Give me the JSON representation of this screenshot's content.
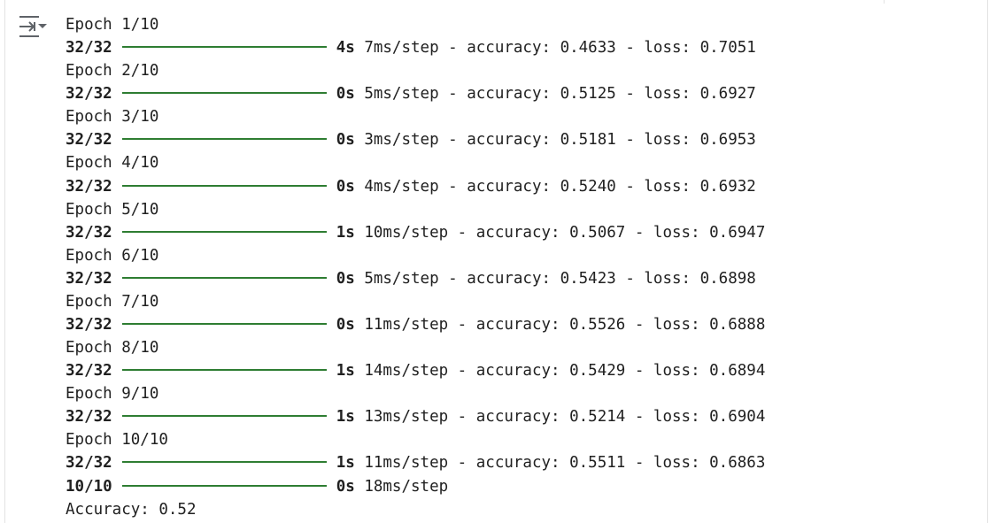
{
  "toggle_icon": "collapse-output-icon",
  "bar_color": "#2e7d32",
  "lines": [
    {
      "kind": "epoch",
      "text": "Epoch 1/10"
    },
    {
      "kind": "progress",
      "steps": "32/32",
      "progress": 1.0,
      "time": "4s",
      "rest": "7ms/step - accuracy: 0.4633 - loss: 0.7051"
    },
    {
      "kind": "epoch",
      "text": "Epoch 2/10"
    },
    {
      "kind": "progress",
      "steps": "32/32",
      "progress": 1.0,
      "time": "0s",
      "rest": "5ms/step - accuracy: 0.5125 - loss: 0.6927"
    },
    {
      "kind": "epoch",
      "text": "Epoch 3/10"
    },
    {
      "kind": "progress",
      "steps": "32/32",
      "progress": 1.0,
      "time": "0s",
      "rest": "3ms/step - accuracy: 0.5181 - loss: 0.6953"
    },
    {
      "kind": "epoch",
      "text": "Epoch 4/10"
    },
    {
      "kind": "progress",
      "steps": "32/32",
      "progress": 1.0,
      "time": "0s",
      "rest": "4ms/step - accuracy: 0.5240 - loss: 0.6932"
    },
    {
      "kind": "epoch",
      "text": "Epoch 5/10"
    },
    {
      "kind": "progress",
      "steps": "32/32",
      "progress": 1.0,
      "time": "1s",
      "rest": "10ms/step - accuracy: 0.5067 - loss: 0.6947"
    },
    {
      "kind": "epoch",
      "text": "Epoch 6/10"
    },
    {
      "kind": "progress",
      "steps": "32/32",
      "progress": 1.0,
      "time": "0s",
      "rest": "5ms/step - accuracy: 0.5423 - loss: 0.6898"
    },
    {
      "kind": "epoch",
      "text": "Epoch 7/10"
    },
    {
      "kind": "progress",
      "steps": "32/32",
      "progress": 1.0,
      "time": "0s",
      "rest": "11ms/step - accuracy: 0.5526 - loss: 0.6888"
    },
    {
      "kind": "epoch",
      "text": "Epoch 8/10"
    },
    {
      "kind": "progress",
      "steps": "32/32",
      "progress": 1.0,
      "time": "1s",
      "rest": "14ms/step - accuracy: 0.5429 - loss: 0.6894"
    },
    {
      "kind": "epoch",
      "text": "Epoch 9/10"
    },
    {
      "kind": "progress",
      "steps": "32/32",
      "progress": 1.0,
      "time": "1s",
      "rest": "13ms/step - accuracy: 0.5214 - loss: 0.6904"
    },
    {
      "kind": "epoch",
      "text": "Epoch 10/10"
    },
    {
      "kind": "progress",
      "steps": "32/32",
      "progress": 1.0,
      "time": "1s",
      "rest": "11ms/step - accuracy: 0.5511 - loss: 0.6863"
    },
    {
      "kind": "progress",
      "steps": "10/10",
      "progress": 1.0,
      "time": "0s",
      "rest": "18ms/step"
    },
    {
      "kind": "text",
      "text": "Accuracy: 0.52"
    }
  ]
}
